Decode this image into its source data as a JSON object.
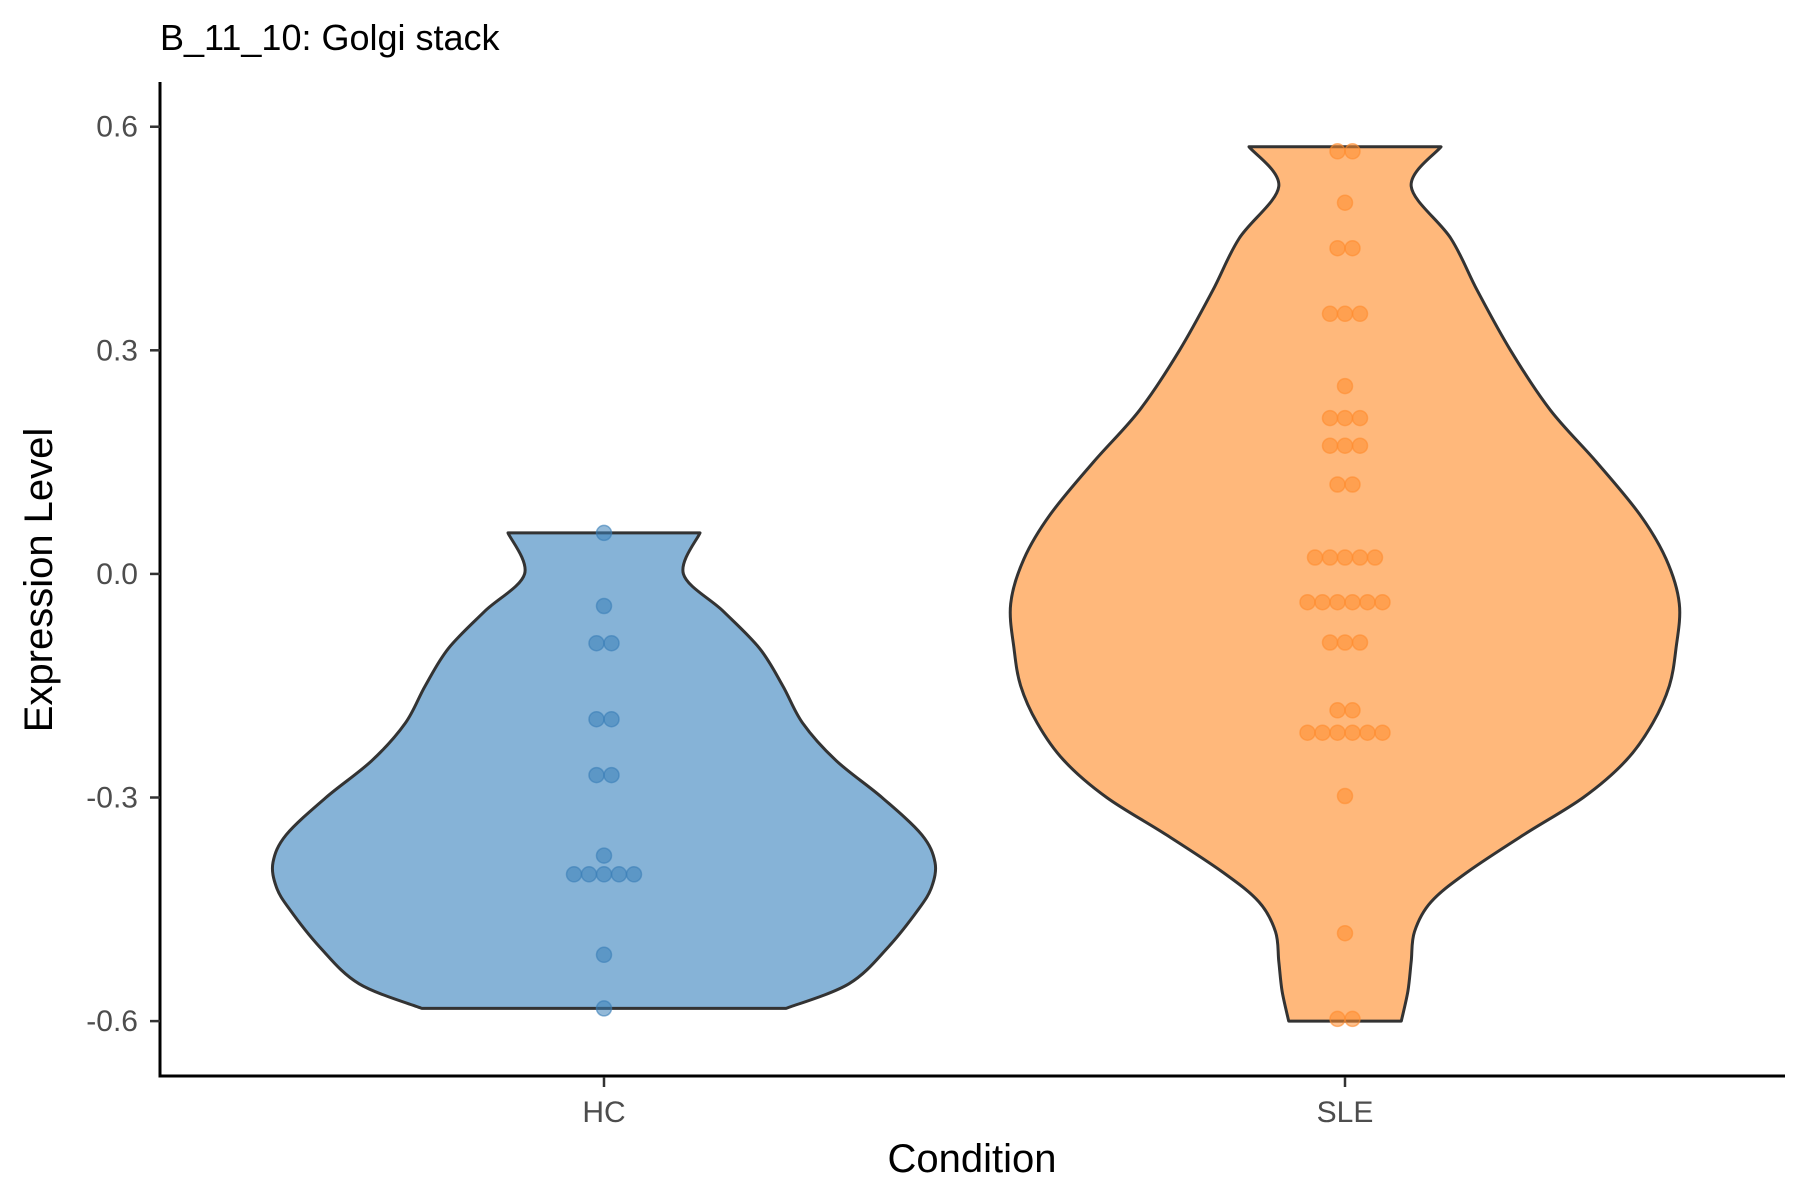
{
  "chart_data": {
    "type": "violin",
    "title": "B_11_10: Golgi stack",
    "xlabel": "Condition",
    "ylabel": "Expression Level",
    "categories": [
      "HC",
      "SLE"
    ],
    "yticks": [
      "0.6",
      "0.3",
      "0.0",
      "-0.3",
      "-0.6"
    ],
    "ytick_values": [
      0.6,
      0.3,
      0.0,
      -0.3,
      -0.6
    ],
    "ylim": [
      -0.675,
      0.66
    ],
    "grid": false,
    "legend": "none",
    "series": [
      {
        "category": "HC",
        "fill": "#86b3d7",
        "point_color": "#3b7fb8",
        "ymin": -0.583,
        "ymax": 0.055,
        "density_profile": [
          [
            -0.583,
            0.55
          ],
          [
            -0.55,
            0.74
          ],
          [
            -0.5,
            0.86
          ],
          [
            -0.45,
            0.95
          ],
          [
            -0.42,
            0.99
          ],
          [
            -0.387,
            1.0
          ],
          [
            -0.35,
            0.96
          ],
          [
            -0.3,
            0.84
          ],
          [
            -0.25,
            0.7
          ],
          [
            -0.2,
            0.6
          ],
          [
            -0.15,
            0.54
          ],
          [
            -0.1,
            0.47
          ],
          [
            -0.05,
            0.36
          ],
          [
            0.0,
            0.24
          ],
          [
            0.055,
            0.29
          ]
        ],
        "points": [
          0.055,
          -0.043,
          -0.093,
          -0.093,
          -0.195,
          -0.195,
          -0.27,
          -0.27,
          -0.378,
          -0.403,
          -0.403,
          -0.403,
          -0.403,
          -0.403,
          -0.511,
          -0.583
        ]
      },
      {
        "category": "SLE",
        "fill": "#ffb87b",
        "point_color": "#ff8c2e",
        "ymin": -0.6,
        "ymax": 0.573,
        "density_profile": [
          [
            -0.6,
            0.17
          ],
          [
            -0.56,
            0.19
          ],
          [
            -0.52,
            0.2
          ],
          [
            -0.48,
            0.21
          ],
          [
            -0.44,
            0.26
          ],
          [
            -0.4,
            0.37
          ],
          [
            -0.35,
            0.54
          ],
          [
            -0.3,
            0.72
          ],
          [
            -0.25,
            0.85
          ],
          [
            -0.2,
            0.93
          ],
          [
            -0.15,
            0.98
          ],
          [
            -0.1,
            1.0
          ],
          [
            -0.04,
            1.01
          ],
          [
            0.02,
            0.97
          ],
          [
            0.08,
            0.89
          ],
          [
            0.15,
            0.76
          ],
          [
            0.22,
            0.62
          ],
          [
            0.3,
            0.5
          ],
          [
            0.38,
            0.4
          ],
          [
            0.45,
            0.32
          ],
          [
            0.52,
            0.2
          ],
          [
            0.573,
            0.29
          ]
        ],
        "points": [
          0.567,
          0.567,
          0.498,
          0.437,
          0.437,
          0.349,
          0.349,
          0.349,
          0.252,
          0.209,
          0.209,
          0.209,
          0.172,
          0.172,
          0.172,
          0.12,
          0.12,
          0.022,
          0.022,
          0.022,
          0.022,
          0.022,
          -0.038,
          -0.038,
          -0.038,
          -0.038,
          -0.038,
          -0.038,
          -0.092,
          -0.092,
          -0.092,
          -0.183,
          -0.183,
          -0.213,
          -0.213,
          -0.213,
          -0.213,
          -0.213,
          -0.213,
          -0.298,
          -0.482,
          -0.597,
          -0.597
        ]
      }
    ]
  }
}
